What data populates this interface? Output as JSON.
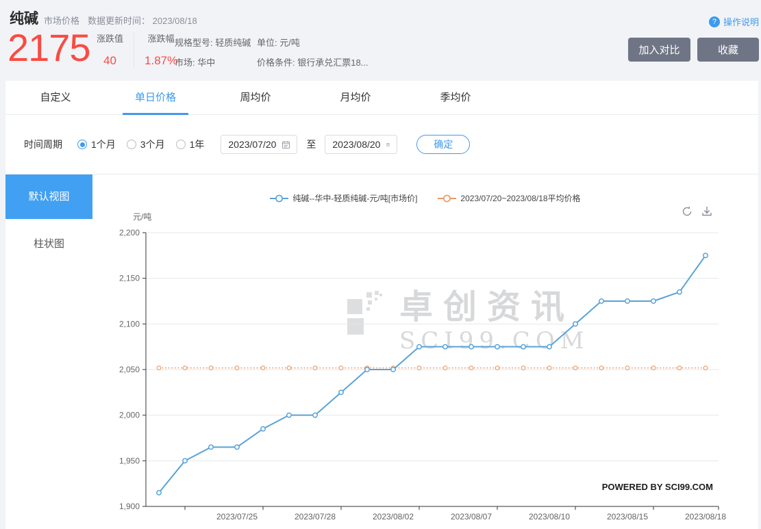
{
  "header": {
    "title": "纯碱",
    "tag": "市场价格",
    "update_label": "数据更新时间：",
    "update_date": "2023/08/18",
    "price": "2175",
    "change_label": "涨跌值",
    "change_value": "40",
    "pct_label": "涨跌幅",
    "pct_value": "1.87%",
    "spec": "规格型号: 轻质纯碱",
    "market": "市场: 华中",
    "unit": "单位: 元/吨",
    "condition": "价格条件: 银行承兑汇票18...",
    "help_icon": "question-circle-icon",
    "help": "操作说明",
    "compare_button": "加入对比",
    "favorite_button": "收藏"
  },
  "tabs": [
    {
      "label": "自定义",
      "active": false
    },
    {
      "label": "单日价格",
      "active": true
    },
    {
      "label": "周均价",
      "active": false
    },
    {
      "label": "月均价",
      "active": false
    },
    {
      "label": "季均价",
      "active": false
    }
  ],
  "period": {
    "label": "时间周期",
    "options": [
      {
        "label": "1个月",
        "selected": true
      },
      {
        "label": "3个月",
        "selected": false
      },
      {
        "label": "1年",
        "selected": false
      }
    ],
    "start_date": "2023/07/20",
    "to_label": "至",
    "end_date": "2023/08/20",
    "calendar_icon": "calendar-icon",
    "confirm_button": "确定"
  },
  "sidebar": {
    "items": [
      {
        "label": "默认视图",
        "active": true
      },
      {
        "label": "柱状图",
        "active": false
      }
    ]
  },
  "chart": {
    "unit_label": "元/吨",
    "refresh_icon": "refresh-icon",
    "download_icon": "download-icon",
    "watermark_line1": "卓创资讯",
    "watermark_line2": "SCI99.COM",
    "powered_by": "POWERED BY SCI99.COM"
  },
  "colors": {
    "accent_blue": "#3d9af0",
    "price_red": "#fa4b42",
    "series_blue": "#58a3d7",
    "average_orange": "#ea9862",
    "button_gray": "#6f7585"
  },
  "chart_data": {
    "type": "line",
    "x": [
      "2023/07/20",
      "2023/07/21",
      "2023/07/24",
      "2023/07/25",
      "2023/07/26",
      "2023/07/27",
      "2023/07/28",
      "2023/07/31",
      "2023/08/01",
      "2023/08/02",
      "2023/08/03",
      "2023/08/04",
      "2023/08/07",
      "2023/08/08",
      "2023/08/09",
      "2023/08/10",
      "2023/08/11",
      "2023/08/14",
      "2023/08/15",
      "2023/08/16",
      "2023/08/17",
      "2023/08/18"
    ],
    "series": [
      {
        "name": "纯碱--华中-轻质纯碱-元/吨[市场价]",
        "type": "line",
        "color": "#58a3d7",
        "values": [
          1915,
          1950,
          1965,
          1965,
          1985,
          2000,
          2000,
          2025,
          2050,
          2050,
          2075,
          2075,
          2075,
          2075,
          2075,
          2075,
          2100,
          2125,
          2125,
          2125,
          2135,
          2175
        ]
      },
      {
        "name": "2023/07/20~2023/08/18平均价格",
        "type": "average-line",
        "color": "#ea9862",
        "value": 2051.8
      }
    ],
    "ylabel": "元/吨",
    "ylim": [
      1900,
      2200
    ],
    "ytick_interval": 50,
    "xtick_labels": [
      "2023/07/25",
      "2023/07/28",
      "2023/08/02",
      "2023/08/07",
      "2023/08/10",
      "2023/08/15",
      "2023/08/18"
    ],
    "grid": "horizontal",
    "legend_position": "top-center"
  }
}
